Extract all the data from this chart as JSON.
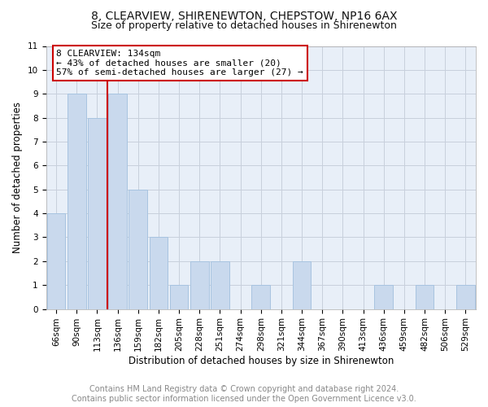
{
  "title": "8, CLEARVIEW, SHIRENEWTON, CHEPSTOW, NP16 6AX",
  "subtitle": "Size of property relative to detached houses in Shirenewton",
  "xlabel": "Distribution of detached houses by size in Shirenewton",
  "ylabel": "Number of detached properties",
  "categories": [
    "66sqm",
    "90sqm",
    "113sqm",
    "136sqm",
    "159sqm",
    "182sqm",
    "205sqm",
    "228sqm",
    "251sqm",
    "274sqm",
    "298sqm",
    "321sqm",
    "344sqm",
    "367sqm",
    "390sqm",
    "413sqm",
    "436sqm",
    "459sqm",
    "482sqm",
    "506sqm",
    "529sqm"
  ],
  "values": [
    4,
    9,
    8,
    9,
    5,
    3,
    1,
    2,
    2,
    0,
    1,
    0,
    2,
    0,
    0,
    0,
    1,
    0,
    1,
    0,
    1
  ],
  "bar_color": "#c9d9ed",
  "bar_edgecolor": "#a8c4e0",
  "subject_line_color": "#cc0000",
  "annotation_box_color": "#cc0000",
  "annotation_text_line1": "8 CLEARVIEW: 134sqm",
  "annotation_text_line2": "← 43% of detached houses are smaller (20)",
  "annotation_text_line3": "57% of semi-detached houses are larger (27) →",
  "ylim": [
    0,
    11
  ],
  "yticks": [
    0,
    1,
    2,
    3,
    4,
    5,
    6,
    7,
    8,
    9,
    10,
    11
  ],
  "footer_line1": "Contains HM Land Registry data © Crown copyright and database right 2024.",
  "footer_line2": "Contains public sector information licensed under the Open Government Licence v3.0.",
  "bg_color": "#ffffff",
  "plot_bg_color": "#e8eff8",
  "grid_color": "#c8d0dc",
  "title_fontsize": 10,
  "subtitle_fontsize": 9,
  "axis_label_fontsize": 8.5,
  "tick_fontsize": 7.5,
  "annotation_fontsize": 8,
  "footer_fontsize": 7
}
